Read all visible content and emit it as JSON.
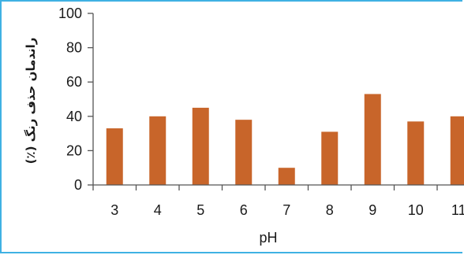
{
  "chart_data": {
    "type": "bar",
    "title": "",
    "xlabel": "pH",
    "ylabel": "راندمان حذف رنگ (٪)",
    "categories": [
      "3",
      "4",
      "5",
      "6",
      "7",
      "8",
      "9",
      "10",
      "11"
    ],
    "values": [
      33,
      40,
      45,
      38,
      10,
      31,
      53,
      37,
      40
    ],
    "ylim": [
      0,
      100
    ],
    "yticks": [
      "0",
      "20",
      "40",
      "60",
      "80",
      "100"
    ],
    "grid": false,
    "legend": "none",
    "bar_color": "#c8652a"
  }
}
